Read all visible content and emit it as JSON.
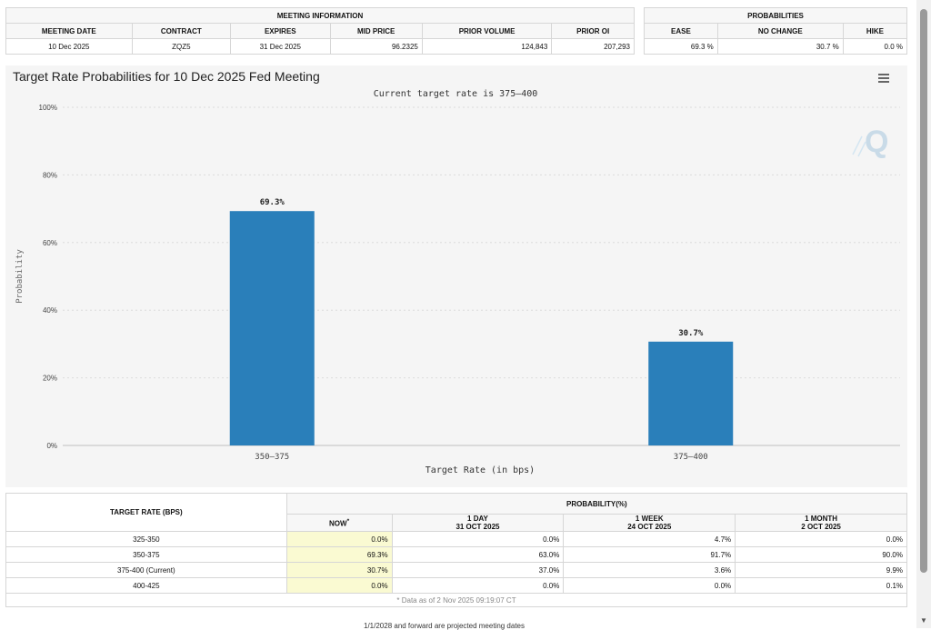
{
  "meeting_info": {
    "header": "MEETING INFORMATION",
    "columns": [
      "MEETING DATE",
      "CONTRACT",
      "EXPIRES",
      "MID PRICE",
      "PRIOR VOLUME",
      "PRIOR OI"
    ],
    "row": [
      "10 Dec 2025",
      "ZQZ5",
      "31 Dec 2025",
      "96.2325",
      "124,843",
      "207,293"
    ]
  },
  "probabilities": {
    "header": "PROBABILITIES",
    "columns": [
      "EASE",
      "NO CHANGE",
      "HIKE"
    ],
    "row": [
      "69.3 %",
      "30.7 %",
      "0.0 %"
    ]
  },
  "chart_data": {
    "type": "bar",
    "title": "Target Rate Probabilities for 10 Dec 2025 Fed Meeting",
    "subtitle": "Current target rate is 375–400",
    "categories": [
      "350–375",
      "375–400"
    ],
    "values": [
      69.3,
      30.7
    ],
    "data_labels": [
      "69.3%",
      "30.7%"
    ],
    "xlabel": "Target Rate (in bps)",
    "ylabel": "Probability",
    "ylim": [
      0,
      100
    ],
    "yticks": [
      "0%",
      "20%",
      "40%",
      "60%",
      "80%",
      "100%"
    ],
    "grid": true,
    "bar_color": "#2a7fba",
    "logo_text": "Q"
  },
  "prob_table": {
    "rate_header": "TARGET RATE (BPS)",
    "prob_header": "PROBABILITY(%)",
    "col_now": "NOW",
    "col_now_mark": "*",
    "col_1day": "1 DAY",
    "col_1day_date": "31 OCT 2025",
    "col_1week": "1 WEEK",
    "col_1week_date": "24 OCT 2025",
    "col_1month": "1 MONTH",
    "col_1month_date": "2 OCT 2025",
    "rows": [
      {
        "rate": "325-350",
        "now": "0.0%",
        "day": "0.0%",
        "week": "4.7%",
        "month": "0.0%"
      },
      {
        "rate": "350-375",
        "now": "69.3%",
        "day": "63.0%",
        "week": "91.7%",
        "month": "90.0%"
      },
      {
        "rate": "375-400 (Current)",
        "now": "30.7%",
        "day": "37.0%",
        "week": "3.6%",
        "month": "9.9%"
      },
      {
        "rate": "400-425",
        "now": "0.0%",
        "day": "0.0%",
        "week": "0.0%",
        "month": "0.1%"
      }
    ],
    "footnote": "* Data as of 2 Nov 2025 09:19:07 CT"
  },
  "cut_text": "1/1/2028 and forward are projected meeting dates"
}
